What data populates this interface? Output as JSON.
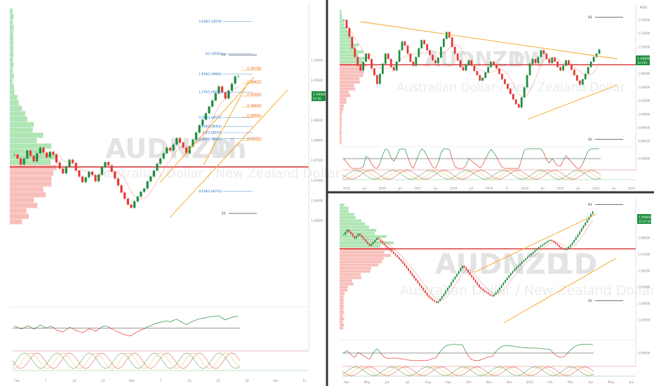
{
  "watermark": {
    "symbol": "AUDNZD",
    "name": "Australian Dollar / New Zealand Dollar"
  },
  "colors": {
    "up": "#1e8e3e",
    "down": "#e53935",
    "channel": "#f7a21b",
    "level": "#d32f2f",
    "price_tag": "#1e8e3e",
    "fib": "#f9a825",
    "rsi": "#1e8e3e"
  },
  "panes": [
    {
      "id": "left",
      "timeframe": "4h",
      "watermark_tf": "4h",
      "price_label": "1.09608",
      "price_sub": "07:50",
      "y_ticks": [
        "1.10000",
        "1.09500",
        "1.09000",
        "1.08500",
        "1.08000",
        "1.07500",
        "1.07000",
        "1.06500",
        "1.06000"
      ],
      "fib_levels": [
        {
          "label": "2.618(1.10976)",
          "value": 1.10976
        },
        {
          "label": "2(1.10165)",
          "value": 1.10165
        },
        {
          "label": "1.618(1.09664)",
          "value": 1.09664
        },
        {
          "label": "1.272(1.09211)",
          "value": 1.09211
        },
        {
          "label": "0.786(1.08572)",
          "value": 1.08572
        },
        {
          "label": "0.618(1.08352)",
          "value": 1.08352
        },
        {
          "label": "0.5(1.08197)",
          "value": 1.08197
        },
        {
          "label": "0.382(1.08043)",
          "value": 1.08043
        },
        {
          "label": "0.618(1.06732)",
          "value": 1.06732
        }
      ],
      "target_levels": [
        {
          "label": "(1.09756)",
          "value": 1.09756
        },
        {
          "label": "(1.09427)",
          "value": 1.09427
        },
        {
          "label": "(1.09109)",
          "value": 1.09109
        },
        {
          "label": "(1.08830)",
          "value": 1.0883
        },
        {
          "label": "(1.08581)",
          "value": 1.08581
        },
        {
          "label": "(1.08001)",
          "value": 1.08001
        }
      ],
      "pivot_labels": {
        "r": "R3",
        "s": "S3"
      },
      "x_ticks": [
        "Feb",
        "7",
        "14",
        "21",
        "Mar",
        "7",
        "14",
        "21",
        "28",
        "Apr",
        "11"
      ]
    },
    {
      "id": "top-right",
      "timeframe": "1W",
      "watermark_tf": "1W",
      "price_label": "1.09608",
      "price_sub": "3d 15h",
      "currency": "NZD",
      "y_ticks": [
        "1.14000",
        "1.12000",
        "1.10000",
        "1.08000",
        "1.06000",
        "1.04000",
        "1.02000",
        "1.00000",
        "0.98000",
        "0.96000"
      ],
      "rsi_ticks": [
        "0.00000"
      ],
      "pivot_labels": {
        "r": "R3",
        "s": "S3"
      },
      "x_ticks": [
        "2015",
        "Jul",
        "2016",
        "Jul",
        "2017",
        "Jul",
        "2018",
        "Jul",
        "2019",
        "8",
        "2020",
        "Jul",
        "2021",
        "Jul",
        "2022",
        "Jul",
        "2023"
      ]
    },
    {
      "id": "bottom-right",
      "timeframe": "1D",
      "watermark_tf": "1D",
      "price_label": "1.09608",
      "price_sub": "12:07:03",
      "y_ticks": [
        "1.09000",
        "1.08000",
        "1.07000",
        "1.06000",
        "1.05000",
        "1.04000",
        "1.03000"
      ],
      "rsi_ticks": [
        "0.00000"
      ],
      "pivot_labels": {
        "r": "R3",
        "s": "S3"
      },
      "x_ticks": [
        "Apr",
        "May",
        "Jun",
        "Jul",
        "Aug",
        "Sep",
        "Oct",
        "Nov",
        "Dec",
        "2022",
        "Feb",
        "Mar",
        "Apr",
        "May",
        "Jun"
      ]
    }
  ],
  "chart_data": [
    {
      "type": "candlestick",
      "title": "AUDNZD 4h",
      "ylim": [
        1.059,
        1.113
      ],
      "close": [
        1.0765,
        1.0755,
        1.074,
        1.0755,
        1.0775,
        1.0762,
        1.0748,
        1.0768,
        1.0782,
        1.077,
        1.0758,
        1.0772,
        1.0765,
        1.0745,
        1.073,
        1.0718,
        1.0735,
        1.0752,
        1.0744,
        1.0725,
        1.071,
        1.0696,
        1.0708,
        1.0722,
        1.0714,
        1.0698,
        1.0715,
        1.0733,
        1.0746,
        1.0738,
        1.0722,
        1.0705,
        1.0688,
        1.067,
        1.0655,
        1.064,
        1.0632,
        1.0648,
        1.066,
        1.0672,
        1.068,
        1.0698,
        1.071,
        1.0725,
        1.0742,
        1.0755,
        1.0768,
        1.0782,
        1.0775,
        1.079,
        1.0806,
        1.0795,
        1.0782,
        1.0768,
        1.0785,
        1.0802,
        1.082,
        1.0838,
        1.0852,
        1.0868,
        1.0885,
        1.09,
        1.0918,
        1.0935,
        1.092,
        1.0905,
        1.0925,
        1.0942,
        1.096,
        1.0961
      ],
      "r3": 1.1014,
      "s3": 1.0618,
      "level": 1.0734,
      "rsi": [
        55,
        52,
        48,
        50,
        56,
        53,
        47,
        52,
        58,
        54,
        50,
        55,
        52,
        45,
        42,
        40,
        46,
        52,
        49,
        44,
        41,
        38,
        43,
        48,
        46,
        42,
        47,
        53,
        56,
        53,
        48,
        44,
        40,
        36,
        33,
        31,
        30,
        36,
        41,
        45,
        48,
        53,
        56,
        60,
        63,
        65,
        67,
        69,
        66,
        70,
        73,
        68,
        63,
        59,
        64,
        68,
        71,
        74,
        75,
        77,
        79,
        80,
        81,
        82,
        76,
        71,
        75,
        78,
        80,
        80
      ],
      "rsi_ylim": [
        0,
        100
      ]
    },
    {
      "type": "candlestick",
      "title": "AUDNZD 1W",
      "ylim": [
        0.955,
        1.155
      ],
      "close": [
        1.14,
        1.128,
        1.115,
        1.098,
        1.085,
        1.072,
        1.065,
        1.078,
        1.09,
        1.082,
        1.068,
        1.058,
        1.045,
        1.06,
        1.075,
        1.09,
        1.082,
        1.07,
        1.065,
        1.078,
        1.095,
        1.108,
        1.102,
        1.09,
        1.078,
        1.072,
        1.085,
        1.098,
        1.11,
        1.104,
        1.095,
        1.088,
        1.08,
        1.076,
        1.084,
        1.1,
        1.112,
        1.122,
        1.114,
        1.1,
        1.09,
        1.08,
        1.07,
        1.065,
        1.073,
        1.08,
        1.072,
        1.064,
        1.058,
        1.05,
        1.054,
        1.062,
        1.07,
        1.078,
        1.074,
        1.068,
        1.06,
        1.052,
        1.045,
        1.038,
        1.03,
        1.022,
        1.015,
        1.01,
        1.025,
        1.04,
        1.058,
        1.075,
        1.082,
        1.076,
        1.085,
        1.095,
        1.09,
        1.082,
        1.076,
        1.084,
        1.078,
        1.07,
        1.065,
        1.072,
        1.08,
        1.074,
        1.066,
        1.058,
        1.05,
        1.044,
        1.052,
        1.06,
        1.07,
        1.078,
        1.085,
        1.09,
        1.0961
      ],
      "r3": 1.1439,
      "s3": 0.9627,
      "level": 1.0734,
      "rsi_ylim": [
        0,
        100
      ]
    },
    {
      "type": "candlestick",
      "title": "AUDNZD 1D",
      "ylim": [
        1.024,
        1.101
      ],
      "close": [
        1.082,
        1.0835,
        1.085,
        1.0838,
        1.0825,
        1.081,
        1.0798,
        1.0812,
        1.0826,
        1.0815,
        1.0802,
        1.079,
        1.0778,
        1.0765,
        1.0752,
        1.0762,
        1.0775,
        1.0788,
        1.08,
        1.0792,
        1.078,
        1.0768,
        1.0756,
        1.0745,
        1.0735,
        1.0725,
        1.0715,
        1.0705,
        1.0695,
        1.0682,
        1.067,
        1.0658,
        1.0645,
        1.063,
        1.0615,
        1.06,
        1.0585,
        1.057,
        1.0555,
        1.054,
        1.0525,
        1.051,
        1.0495,
        1.048,
        1.0465,
        1.045,
        1.0438,
        1.0428,
        1.042,
        1.0412,
        1.0405,
        1.0415,
        1.043,
        1.0445,
        1.046,
        1.0478,
        1.0495,
        1.051,
        1.053,
        1.0548,
        1.0565,
        1.058,
        1.0598,
        1.0615,
        1.063,
        1.062,
        1.0605,
        1.059,
        1.0575,
        1.056,
        1.0545,
        1.053,
        1.0515,
        1.05,
        1.049,
        1.048,
        1.0472,
        1.0465,
        1.0458,
        1.045,
        1.0445,
        1.0455,
        1.0468,
        1.0482,
        1.0497,
        1.0512,
        1.0528,
        1.0543,
        1.0558,
        1.0572,
        1.0585,
        1.0598,
        1.061,
        1.0622,
        1.0633,
        1.0644,
        1.0655,
        1.0665,
        1.0675,
        1.0685,
        1.0695,
        1.0705,
        1.0715,
        1.0725,
        1.0735,
        1.0744,
        1.0752,
        1.076,
        1.0768,
        1.0775,
        1.0782,
        1.0788,
        1.0782,
        1.0774,
        1.0765,
        1.0755,
        1.0745,
        1.0738,
        1.0732,
        1.0728,
        1.0736,
        1.0746,
        1.0758,
        1.0772,
        1.0788,
        1.0805,
        1.0822,
        1.084,
        1.0858,
        1.0876,
        1.0893,
        1.091,
        1.0928,
        1.0945,
        1.0961
      ],
      "r3": 1.1004,
      "s3": 1.0418,
      "level": 1.0734,
      "rsi_ylim": [
        0,
        100
      ]
    }
  ]
}
